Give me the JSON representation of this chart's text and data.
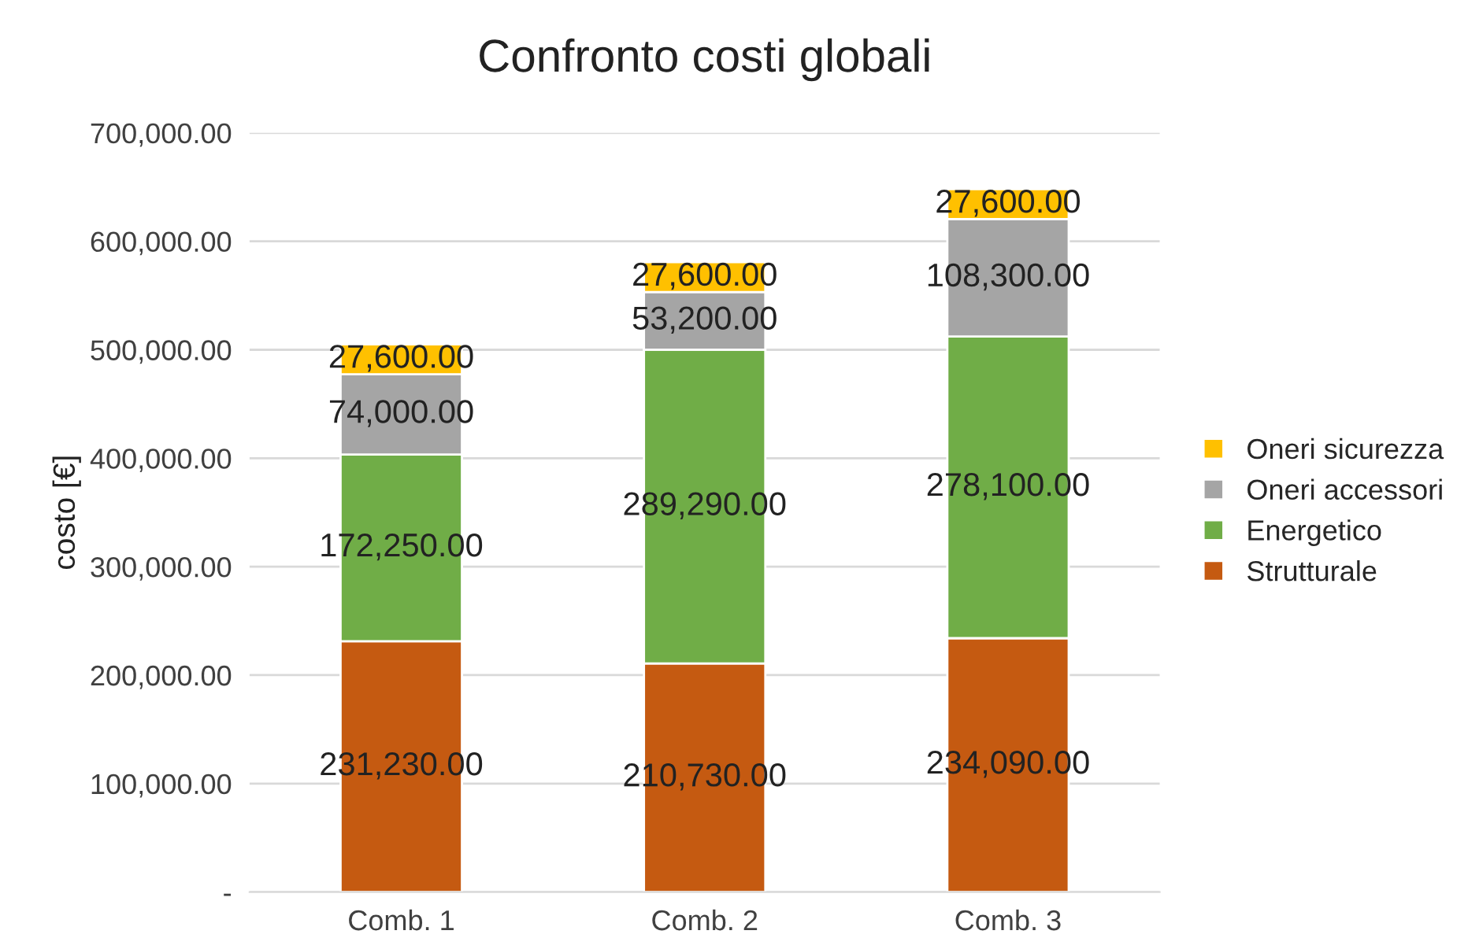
{
  "chart_data": {
    "type": "bar",
    "stacked": true,
    "title": "Confronto costi globali",
    "ylabel": "costo [€]",
    "categories": [
      "Comb. 1",
      "Comb. 2",
      "Comb. 3"
    ],
    "series": [
      {
        "name": "Strutturale",
        "color": "#c55a11",
        "values": [
          231230,
          210730,
          234090
        ],
        "value_labels": [
          "231,230.00",
          "210,730.00",
          "234,090.00"
        ]
      },
      {
        "name": "Energetico",
        "color": "#70ad47",
        "values": [
          172250,
          289290,
          278100
        ],
        "value_labels": [
          "172,250.00",
          "289,290.00",
          "278,100.00"
        ]
      },
      {
        "name": "Oneri accessori",
        "color": "#a5a5a5",
        "values": [
          74000,
          53200,
          108300
        ],
        "value_labels": [
          "74,000.00",
          "53,200.00",
          "108,300.00"
        ]
      },
      {
        "name": "Oneri sicurezza",
        "color": "#ffc000",
        "values": [
          27600,
          27600,
          27600
        ],
        "value_labels": [
          "27,600.00",
          "27,600.00",
          "27,600.00"
        ]
      }
    ],
    "ylim": [
      0,
      700000
    ],
    "yticks": [
      {
        "value": 0,
        "label": "-"
      },
      {
        "value": 100000,
        "label": "100,000.00"
      },
      {
        "value": 200000,
        "label": "200,000.00"
      },
      {
        "value": 300000,
        "label": "300,000.00"
      },
      {
        "value": 400000,
        "label": "400,000.00"
      },
      {
        "value": 500000,
        "label": "500,000.00"
      },
      {
        "value": 600000,
        "label": "600,000.00"
      },
      {
        "value": 700000,
        "label": "700,000.00"
      }
    ],
    "grid": "y",
    "legend": "right"
  }
}
